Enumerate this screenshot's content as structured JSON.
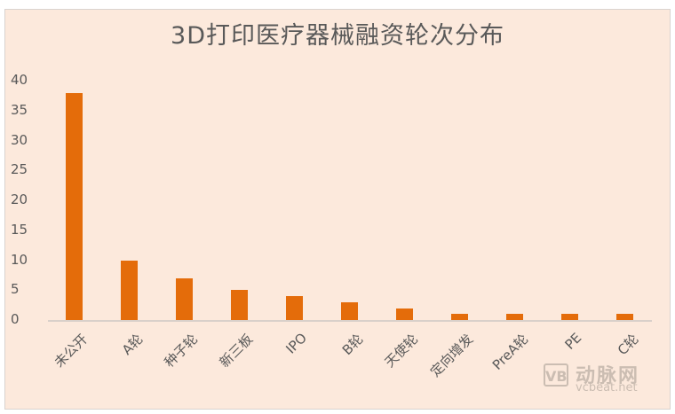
{
  "chart_data": {
    "type": "bar",
    "title": "3D打印医疗器械融资轮次分布",
    "categories": [
      "未公开",
      "A轮",
      "种子轮",
      "新三板",
      "IPO",
      "B轮",
      "天使轮",
      "定向增发",
      "PreA轮",
      "PE",
      "C轮"
    ],
    "values": [
      38,
      10,
      7,
      5,
      4,
      3,
      2,
      1,
      1,
      1,
      1
    ],
    "xlabel": "",
    "ylabel": "",
    "ylim": [
      0,
      40
    ],
    "yticks": [
      "40",
      "35",
      "30",
      "25",
      "20",
      "15",
      "10",
      "5",
      "0"
    ],
    "grid": false,
    "legend": null,
    "bar_color": "#e46c0a",
    "background_color": "#fce9dc"
  },
  "watermark": {
    "logo": "VB",
    "chinese": "动脉网",
    "url": "vcbeat.net"
  }
}
